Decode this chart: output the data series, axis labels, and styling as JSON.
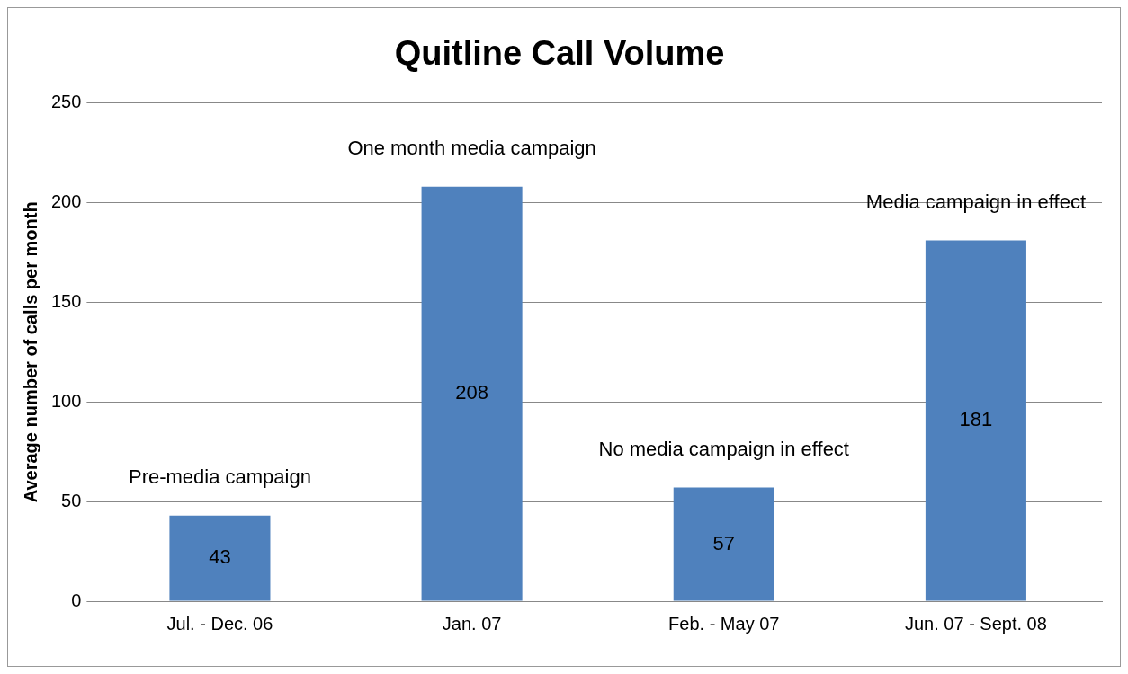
{
  "chart_data": {
    "type": "bar",
    "title": "Quitline Call Volume",
    "ylabel": "Average number of calls per month",
    "categories": [
      "Jul. - Dec. 06",
      "Jan. 07",
      "Feb. - May 07",
      "Jun. 07 - Sept. 08"
    ],
    "values": [
      43,
      208,
      57,
      181
    ],
    "color": "#4f81bd",
    "ylim": [
      0,
      250
    ],
    "yticks": [
      0,
      50,
      100,
      150,
      200,
      250
    ],
    "grid": "y",
    "legend": false,
    "data_labels": true,
    "annotations": [
      "Pre-media campaign",
      "One month media campaign",
      "No media campaign in effect",
      "Media campaign in effect"
    ]
  }
}
